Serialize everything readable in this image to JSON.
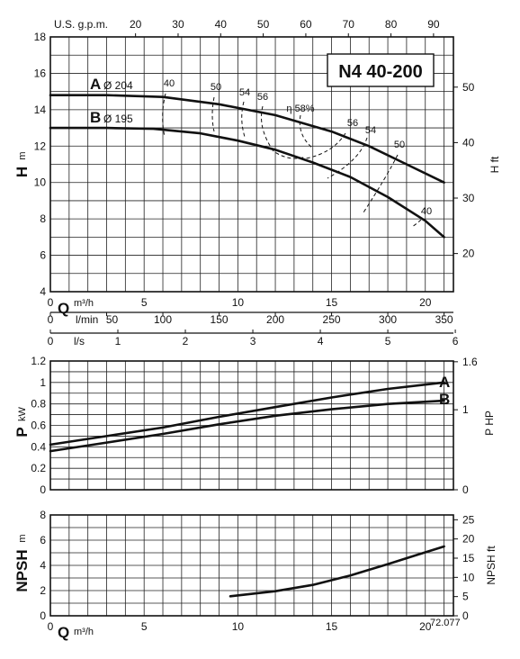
{
  "model": "N4 40-200",
  "code": "72.077",
  "top_axis": {
    "label": "U.S. g.p.m.",
    "ticks": [
      20,
      30,
      40,
      50,
      60,
      70,
      80,
      90
    ]
  },
  "q_m3h_ticks": [
    0,
    5,
    10,
    15,
    20
  ],
  "q_lmin": {
    "label": "l/min",
    "ticks": [
      0,
      50,
      100,
      150,
      200,
      250,
      300,
      350
    ]
  },
  "q_ls": {
    "label": "l/s",
    "ticks": [
      0,
      1,
      2,
      3,
      4,
      5,
      6
    ]
  },
  "q_label": "Q",
  "q_unit": "m³/h",
  "head": {
    "label": "H",
    "unit": "m",
    "right_label": "H ft",
    "ticks": [
      4,
      6,
      8,
      10,
      12,
      14,
      16,
      18
    ],
    "ft_ticks": [
      20,
      30,
      40,
      50
    ]
  },
  "power": {
    "label": "P",
    "unit": "kW",
    "right_label": "P HP",
    "ticks": [
      0,
      0.2,
      0.4,
      0.6,
      0.8,
      1.0,
      1.2
    ],
    "hp_ticks": [
      0,
      1.0,
      1.6
    ]
  },
  "npsh": {
    "label": "NPSH",
    "unit": "m",
    "right_label": "NPSH ft",
    "ticks": [
      0,
      2,
      4,
      6,
      8
    ],
    "ft_ticks": [
      0,
      5,
      10,
      15,
      20,
      25
    ]
  },
  "impeller_labels": {
    "a_letter": "A",
    "a_dia": "Ø 204",
    "b_letter": "B",
    "b_dia": "Ø 195"
  },
  "efficiency_labels": [
    "40",
    "50",
    "54",
    "56",
    "η 58%",
    "56",
    "54",
    "50",
    "40"
  ],
  "chart_data": [
    {
      "type": "line",
      "title": "N4 40-200",
      "xlabel": "Q m³/h",
      "ylabel": "H m",
      "xlim": [
        0,
        21.5
      ],
      "ylim": [
        4,
        18
      ],
      "series": [
        {
          "name": "A Ø 204",
          "x": [
            0,
            3,
            6,
            9,
            12,
            15,
            17,
            19,
            21
          ],
          "y": [
            14.8,
            14.8,
            14.7,
            14.3,
            13.7,
            12.8,
            12.0,
            11.0,
            10.0
          ]
        },
        {
          "name": "B Ø 195",
          "x": [
            0,
            3,
            5.5,
            8,
            10,
            12,
            14,
            16,
            18,
            20,
            21
          ],
          "y": [
            13.0,
            13.0,
            12.95,
            12.7,
            12.3,
            11.8,
            11.1,
            10.3,
            9.2,
            7.9,
            7.0
          ]
        }
      ]
    },
    {
      "type": "line",
      "xlabel": "Q m³/h",
      "ylabel": "P kW",
      "xlim": [
        0,
        21.5
      ],
      "ylim": [
        0,
        1.2
      ],
      "series": [
        {
          "name": "A",
          "x": [
            0,
            3,
            6,
            9,
            12,
            15,
            18,
            21
          ],
          "y": [
            0.42,
            0.5,
            0.58,
            0.68,
            0.77,
            0.86,
            0.94,
            1.0
          ]
        },
        {
          "name": "B",
          "x": [
            0,
            3,
            6,
            9,
            12,
            15,
            18,
            21
          ],
          "y": [
            0.36,
            0.44,
            0.52,
            0.61,
            0.69,
            0.75,
            0.8,
            0.83
          ]
        }
      ]
    },
    {
      "type": "line",
      "xlabel": "Q m³/h",
      "ylabel": "NPSH m",
      "xlim": [
        0,
        21.5
      ],
      "ylim": [
        0,
        8
      ],
      "series": [
        {
          "name": "",
          "x": [
            9.6,
            12,
            14,
            16,
            18,
            19.5,
            21
          ],
          "y": [
            1.55,
            1.95,
            2.45,
            3.2,
            4.1,
            4.8,
            5.5
          ]
        }
      ]
    }
  ]
}
